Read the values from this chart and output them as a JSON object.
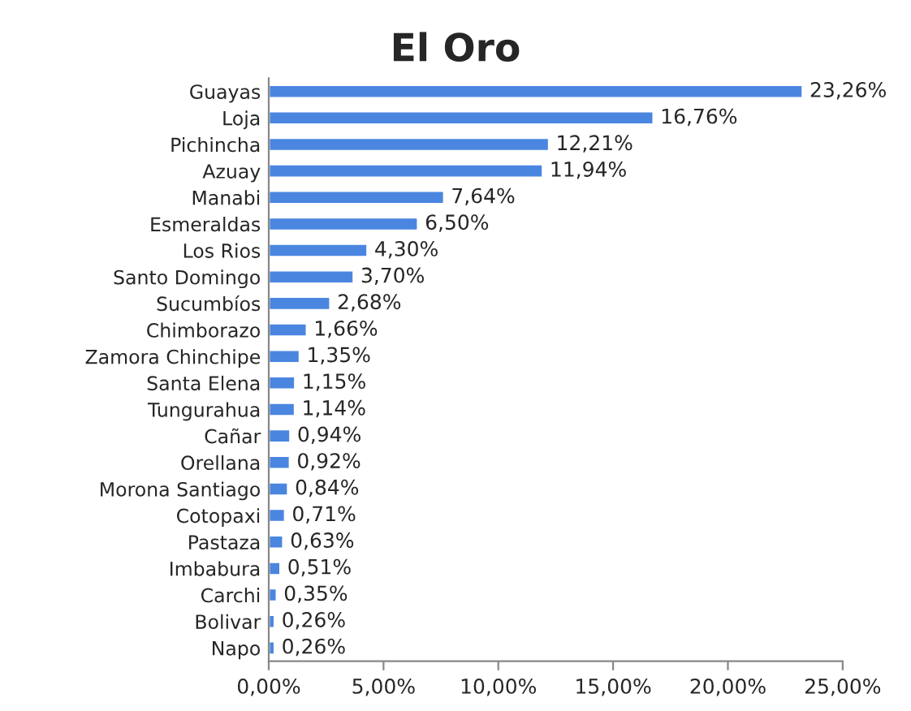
{
  "chart_data": {
    "type": "bar",
    "orientation": "horizontal",
    "title": "El Oro",
    "categories": [
      "Guayas",
      "Loja",
      "Pichincha",
      "Azuay",
      "Manabi",
      "Esmeraldas",
      "Los Rios",
      "Santo Domingo",
      "Sucumbíos",
      "Chimborazo",
      "Zamora Chinchipe",
      "Santa Elena",
      "Tungurahua",
      "Cañar",
      "Orellana",
      "Morona Santiago",
      "Cotopaxi",
      "Pastaza",
      "Imbabura",
      "Carchi",
      "Bolivar",
      "Napo"
    ],
    "values": [
      23.26,
      16.76,
      12.21,
      11.94,
      7.64,
      6.5,
      4.3,
      3.7,
      2.68,
      1.66,
      1.35,
      1.15,
      1.14,
      0.94,
      0.92,
      0.84,
      0.71,
      0.63,
      0.51,
      0.35,
      0.26,
      0.26
    ],
    "value_labels": [
      "23,26%",
      "16,76%",
      "12,21%",
      "11,94%",
      "7,64%",
      "6,50%",
      "4,30%",
      "3,70%",
      "2,68%",
      "1,66%",
      "1,35%",
      "1,15%",
      "1,14%",
      "0,94%",
      "0,92%",
      "0,84%",
      "0,71%",
      "0,63%",
      "0,51%",
      "0,35%",
      "0,26%",
      "0,26%"
    ],
    "color": "#4a86e0",
    "xlim": [
      0,
      25
    ],
    "xticks": [
      {
        "value": 0,
        "label": "0,00%"
      },
      {
        "value": 5,
        "label": "5,00%"
      },
      {
        "value": 10,
        "label": "10,00%"
      },
      {
        "value": 15,
        "label": "15,00%"
      },
      {
        "value": 20,
        "label": "20,00%"
      },
      {
        "value": 25,
        "label": "25,00%"
      }
    ],
    "grid": false,
    "legend": false
  }
}
